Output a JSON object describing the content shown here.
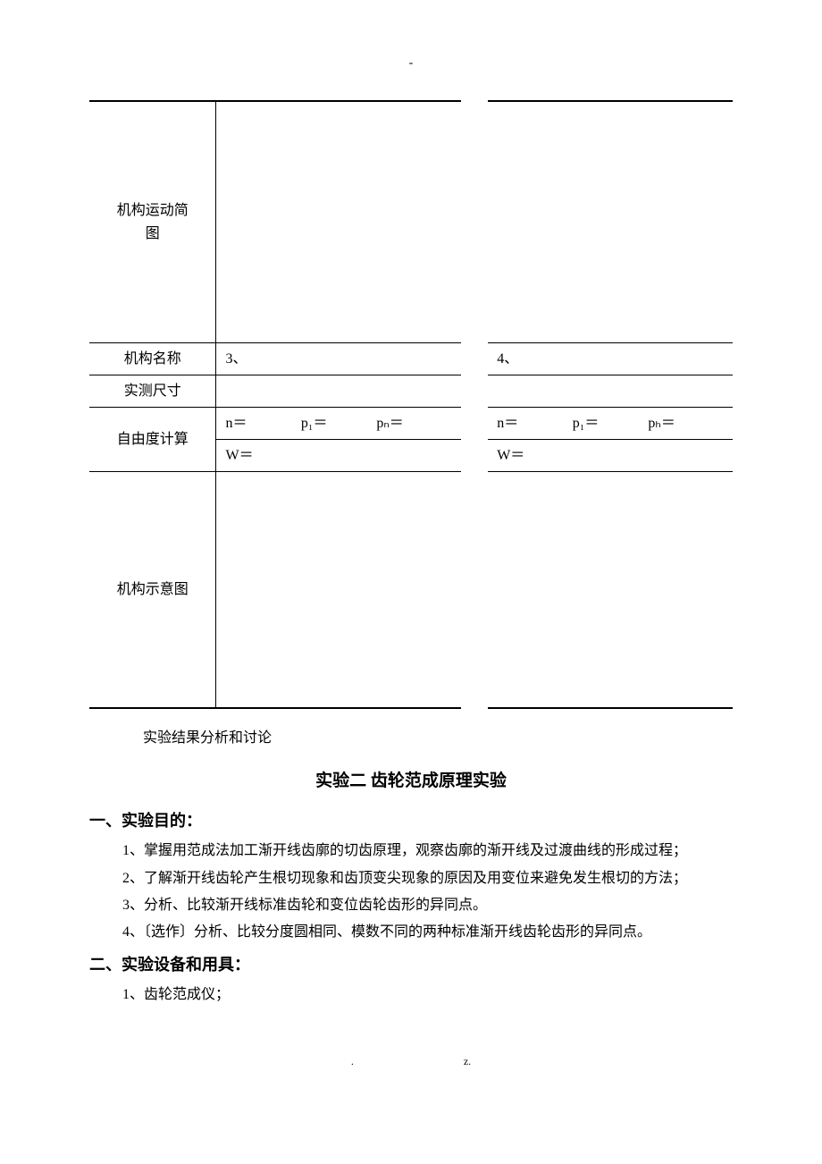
{
  "top_dash": "-",
  "table": {
    "row_diagram_label_l1": "机构运动简",
    "row_diagram_label_l2": "图",
    "row_name_label": "机构名称",
    "row_name_col1": "3、",
    "row_name_col2": "4、",
    "row_measured_label": "实测尺寸",
    "row_dof_label": "自由度计算",
    "vars_col1_n": "n＝",
    "vars_col1_p1": "p₁＝",
    "vars_col1_pn": "pₙ＝",
    "vars_col2_n": "n＝",
    "vars_col2_p1": "p₁＝",
    "vars_col2_ph": "pₕ＝",
    "vars_col1_w": "W＝",
    "vars_col2_w": "W＝",
    "row_schematic_label": "机构示意图"
  },
  "analysis_text": "实验结果分析和讨论",
  "exp_title": "实验二  齿轮范成原理实验",
  "sec1_head": "一、实验目的：",
  "sec1_item1": "1、掌握用范成法加工渐开线齿廓的切齿原理，观察齿廓的渐开线及过渡曲线的形成过程；",
  "sec1_item2": "2、了解渐开线齿轮产生根切现象和齿顶变尖现象的原因及用变位来避免发生根切的方法；",
  "sec1_item3": "3、分析、比较渐开线标准齿轮和变位齿轮齿形的异同点。",
  "sec1_item4": "4、〔选作〕分析、比较分度圆相同、模数不同的两种标准渐开线齿轮齿形的异同点。",
  "sec2_head": "二、实验设备和用具：",
  "sec2_item1": "1、齿轮范成仪；",
  "footer_dot": ".",
  "footer_z": "z."
}
